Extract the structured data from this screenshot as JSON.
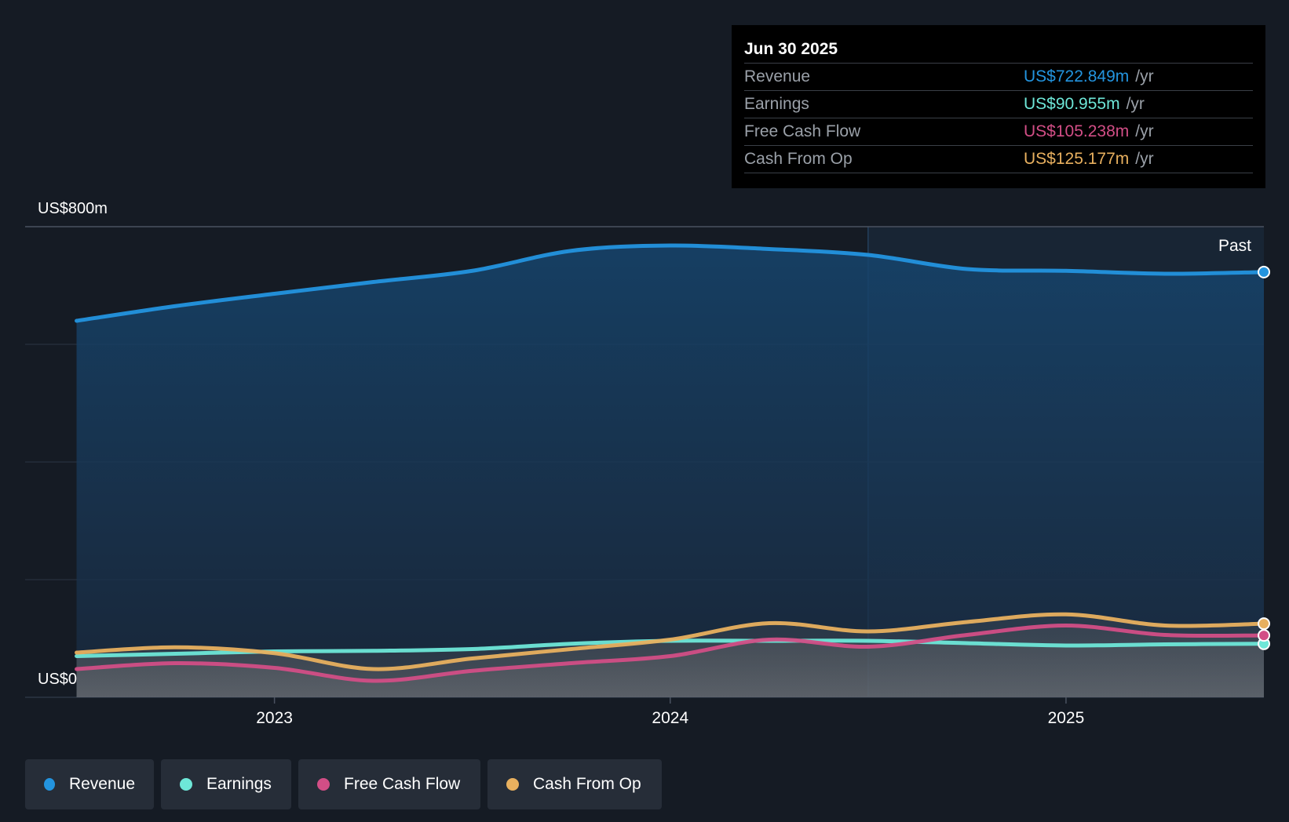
{
  "tooltip": {
    "date": "Jun 30 2025",
    "rows": [
      {
        "label": "Revenue",
        "value": "US$722.849m",
        "unit": "/yr",
        "color": "#2394df"
      },
      {
        "label": "Earnings",
        "value": "US$90.955m",
        "unit": "/yr",
        "color": "#6ee7d8"
      },
      {
        "label": "Free Cash Flow",
        "value": "US$105.238m",
        "unit": "/yr",
        "color": "#d24e86"
      },
      {
        "label": "Cash From Op",
        "value": "US$125.177m",
        "unit": "/yr",
        "color": "#e8b05f"
      }
    ]
  },
  "legend": [
    {
      "label": "Revenue",
      "color": "#2394df"
    },
    {
      "label": "Earnings",
      "color": "#6ee7d8"
    },
    {
      "label": "Free Cash Flow",
      "color": "#d24e86"
    },
    {
      "label": "Cash From Op",
      "color": "#e8b05f"
    }
  ],
  "chart_data": {
    "type": "area",
    "ylabel_top": "US$800m",
    "ylabel_bottom": "US$0",
    "ylim": [
      0,
      800
    ],
    "xlim": [
      2022.37,
      2025.5
    ],
    "x_ticks": [
      2023,
      2024,
      2025
    ],
    "x_tick_labels": [
      "2023",
      "2024",
      "2025"
    ],
    "past_label": "Past",
    "past_divider_x": 2024.5,
    "series": [
      {
        "name": "Revenue",
        "color": "#2394df",
        "x": [
          2022.5,
          2022.75,
          2023.0,
          2023.25,
          2023.5,
          2023.75,
          2024.0,
          2024.25,
          2024.5,
          2024.75,
          2025.0,
          2025.25,
          2025.5
        ],
        "values": [
          640,
          665,
          686,
          706,
          725,
          759,
          768,
          762,
          752,
          728,
          725,
          720,
          722.849
        ]
      },
      {
        "name": "Earnings",
        "color": "#6ee7d8",
        "x": [
          2022.5,
          2022.75,
          2023.0,
          2023.25,
          2023.5,
          2023.75,
          2024.0,
          2024.25,
          2024.5,
          2024.75,
          2025.0,
          2025.25,
          2025.5
        ],
        "values": [
          70,
          74,
          78,
          79,
          82,
          91,
          96,
          96,
          96,
          92,
          88,
          90,
          90.955
        ]
      },
      {
        "name": "Free Cash Flow",
        "color": "#d24e86",
        "x": [
          2022.5,
          2022.75,
          2023.0,
          2023.25,
          2023.5,
          2023.75,
          2024.0,
          2024.25,
          2024.5,
          2024.75,
          2025.0,
          2025.25,
          2025.5
        ],
        "values": [
          48,
          58,
          50,
          28,
          45,
          58,
          70,
          98,
          86,
          106,
          122,
          106,
          105.238
        ]
      },
      {
        "name": "Cash From Op",
        "color": "#e8b05f",
        "x": [
          2022.5,
          2022.75,
          2023.0,
          2023.25,
          2023.5,
          2023.75,
          2024.0,
          2024.25,
          2024.5,
          2024.75,
          2025.0,
          2025.25,
          2025.5
        ],
        "values": [
          76,
          85,
          75,
          48,
          66,
          82,
          98,
          126,
          112,
          128,
          141,
          122,
          125.177
        ]
      }
    ]
  }
}
